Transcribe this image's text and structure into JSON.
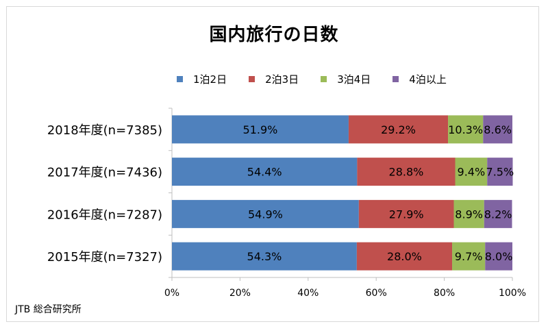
{
  "title": "国内旅行の日数",
  "source": "JTB 総合研究所",
  "legend": [
    {
      "label": "1泊2日",
      "color": "#4f81bd"
    },
    {
      "label": "2泊3日",
      "color": "#c0504d"
    },
    {
      "label": "3泊4日",
      "color": "#9bbb59"
    },
    {
      "label": "4泊以上",
      "color": "#8064a2"
    }
  ],
  "chart_data": {
    "type": "bar",
    "orientation": "horizontal",
    "stacked": "percent",
    "title": "国内旅行の日数",
    "categories": [
      "2018年度(n=7385)",
      "2017年度(n=7436)",
      "2016年度(n=7287)",
      "2015年度(n=7327)"
    ],
    "series": [
      {
        "name": "1泊2日",
        "color": "#4f81bd",
        "values": [
          51.9,
          54.4,
          54.9,
          54.3
        ],
        "labels": [
          "51.9%",
          "54.4%",
          "54.9%",
          "54.3%"
        ]
      },
      {
        "name": "2泊3日",
        "color": "#c0504d",
        "values": [
          29.2,
          28.8,
          27.9,
          28.0
        ],
        "labels": [
          "29.2%",
          "28.8%",
          "27.9%",
          "28.0%"
        ]
      },
      {
        "name": "3泊4日",
        "color": "#9bbb59",
        "values": [
          10.3,
          9.4,
          8.9,
          9.7
        ],
        "labels": [
          "10.3%",
          "9.4%",
          "8.9%",
          "9.7%"
        ]
      },
      {
        "name": "4泊以上",
        "color": "#8064a2",
        "values": [
          8.6,
          7.5,
          8.2,
          8.0
        ],
        "labels": [
          "8.6%",
          "7.5%",
          "8.2%",
          "8.0%"
        ]
      }
    ],
    "xticks": [
      "0%",
      "20%",
      "40%",
      "60%",
      "80%",
      "100%"
    ],
    "xlim": [
      0,
      100
    ],
    "grid": false,
    "legend_position": "top"
  }
}
